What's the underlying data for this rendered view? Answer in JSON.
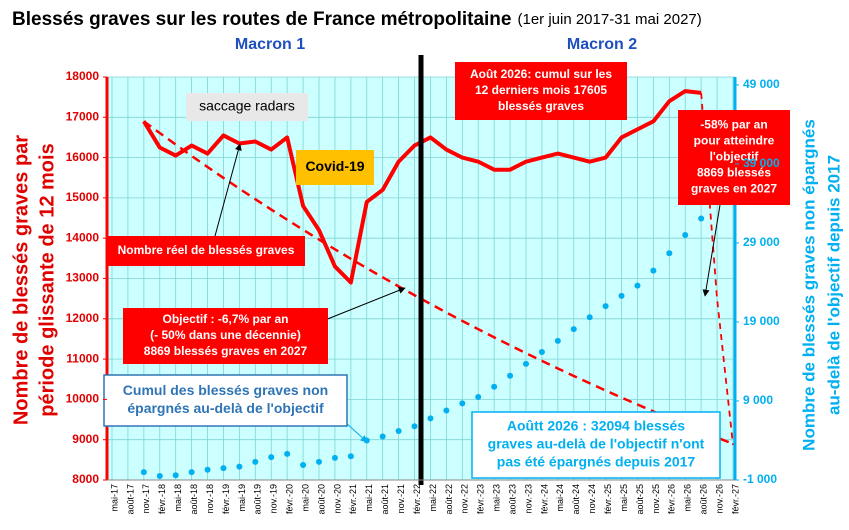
{
  "chart_data": {
    "type": "line",
    "title": "Blessés graves sur les routes de France métropolitaine",
    "subtitle": "(1er juin 2017-31 mai 2027)",
    "period_labels": [
      "Macron 1",
      "Macron 2"
    ],
    "y_label": [
      "Nombre de blessés graves par",
      "période glissante de 12 mois"
    ],
    "y2_label": [
      "Nombre de blessés graves non épargnés",
      "au-delà de l'objectif depuis 2017"
    ],
    "categories": [
      "mai-17",
      "août-17",
      "nov.-17",
      "févr.-18",
      "mai-18",
      "août-18",
      "nov.-18",
      "févr.-19",
      "mai-19",
      "août-19",
      "nov.-19",
      "févr.-20",
      "mai-20",
      "août-20",
      "nov.-20",
      "févr.-21",
      "mai-21",
      "août-21",
      "nov.-21",
      "févr.-22",
      "mai-22",
      "août-22",
      "nov.-22",
      "févr.-23",
      "mai-23",
      "août-23",
      "nov.-23",
      "févr.-24",
      "mai-24",
      "août-24",
      "nov.-24",
      "févr.-25",
      "mai-25",
      "août-25",
      "nov.-25",
      "févr.-26",
      "mai-26",
      "août-26",
      "nov.-26",
      "févr.-27"
    ],
    "ylim": [
      8000,
      18000
    ],
    "yticks": [
      8000,
      9000,
      10000,
      11000,
      12000,
      13000,
      14000,
      15000,
      16000,
      17000,
      18000
    ],
    "y2lim": [
      -1000,
      50000
    ],
    "y2ticks": [
      {
        "value": -1000,
        "label": "-1 000"
      },
      {
        "value": 9000,
        "label": "9 000"
      },
      {
        "value": 19000,
        "label": "19 000"
      },
      {
        "value": 29000,
        "label": "29 000"
      },
      {
        "value": 39000,
        "label": "39 000"
      },
      {
        "value": 49000,
        "label": "49 000"
      }
    ],
    "grid": true,
    "series": [
      {
        "color": "#ff0000",
        "line_style": "solid",
        "axis": "y",
        "values": [
          null,
          null,
          16900,
          16250,
          16050,
          16300,
          16100,
          16550,
          16350,
          16400,
          16200,
          16500,
          14800,
          14200,
          13300,
          12900,
          14900,
          15200,
          15900,
          16300,
          16500,
          16200,
          16000,
          15900,
          15700,
          15700,
          15900,
          16000,
          16100,
          16000,
          15900,
          16000,
          16500,
          16700,
          16900,
          17400,
          17650,
          17605,
          null,
          null
        ]
      },
      {
        "color": "#ff0000",
        "line_style": "dashed",
        "axis": "y",
        "values": [
          null,
          null,
          16900,
          16610,
          16324,
          16043,
          15767,
          15496,
          15230,
          14968,
          14711,
          14458,
          14209,
          13965,
          13725,
          13489,
          13257,
          13029,
          12805,
          12585,
          12369,
          12156,
          11947,
          11742,
          11540,
          11342,
          11147,
          10955,
          10767,
          10582,
          10400,
          10221,
          10045,
          9873,
          9703,
          9536,
          9372,
          9211,
          9053,
          8897
        ]
      },
      {
        "color": "#ff0000",
        "line_style": "dashed-thin",
        "axis": "y",
        "values": [
          null,
          null,
          null,
          null,
          null,
          null,
          null,
          null,
          null,
          null,
          null,
          null,
          null,
          null,
          null,
          null,
          null,
          null,
          null,
          null,
          null,
          null,
          null,
          null,
          null,
          null,
          null,
          null,
          null,
          null,
          null,
          null,
          null,
          null,
          null,
          null,
          null,
          17605,
          12500,
          8869
        ]
      },
      {
        "color": "#00b0f0",
        "line_style": "dotted",
        "axis": "y2",
        "values": [
          null,
          null,
          0,
          -500,
          -400,
          0,
          300,
          500,
          700,
          1300,
          1900,
          2300,
          900,
          1300,
          1800,
          2000,
          4000,
          4500,
          5200,
          5800,
          6800,
          7800,
          8700,
          9500,
          10800,
          12200,
          13700,
          15200,
          16600,
          18100,
          19600,
          21000,
          22300,
          23600,
          25500,
          27700,
          30000,
          32094,
          null,
          null
        ]
      }
    ],
    "annotations": [
      {
        "lines": [
          "saccage radars"
        ]
      },
      {
        "lines": [
          "Covid-19"
        ]
      },
      {
        "lines": [
          "Nombre réel de blessés graves"
        ]
      },
      {
        "lines": [
          "Objectif : -6,7% par an",
          "(- 50% dans une décennie)",
          "8869 blessés graves en 2027"
        ]
      },
      {
        "lines": [
          "Cumul des blessés graves non",
          "épargnés  au-delà de l'objectif"
        ]
      },
      {
        "lines": [
          "Août 2026: cumul sur les",
          "12 derniers mois 17605",
          "blessés graves"
        ]
      },
      {
        "lines": [
          "-58% par an",
          "pour atteindre",
          "l'objectif",
          "8869 blessés",
          "graves en 2027"
        ]
      },
      {
        "lines": [
          "Aoûtt 2026 : 32094 blessés",
          "graves au-delà de l'objectif n'ont",
          "pas été épargnés depuis 2017"
        ]
      }
    ]
  }
}
